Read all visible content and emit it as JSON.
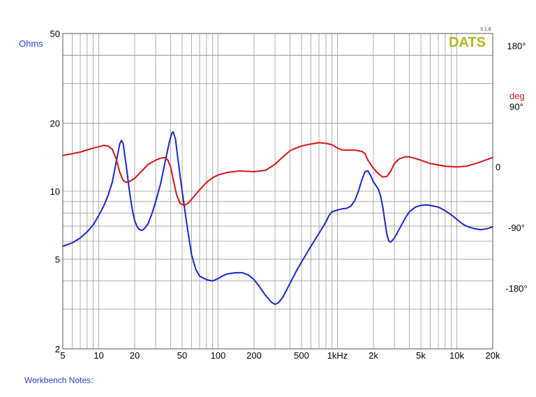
{
  "brand": {
    "name": "DATS",
    "version": "3.1.6"
  },
  "notes_label": "Workbench Notes:",
  "colors": {
    "impedance": "#1a25c8",
    "phase": "#d41414",
    "grid": "#9a9a9a",
    "frame": "#555555",
    "brand": "#b4b41e"
  },
  "chart_data": {
    "type": "line",
    "title": "",
    "xscale": "log",
    "yscale": "log",
    "grid": true,
    "xlim": [
      5,
      20000
    ],
    "ylim": [
      2,
      50
    ],
    "y2lim": [
      -270,
      198
    ],
    "left_unit": "Ohms",
    "right_unit": "deg",
    "x_ticks": [
      {
        "value": 5,
        "label": "5"
      },
      {
        "value": 10,
        "label": "10"
      },
      {
        "value": 20,
        "label": "20"
      },
      {
        "value": 50,
        "label": "50"
      },
      {
        "value": 100,
        "label": "100"
      },
      {
        "value": 200,
        "label": "200"
      },
      {
        "value": 500,
        "label": "500"
      },
      {
        "value": 1000,
        "label": "1kHz"
      },
      {
        "value": 2000,
        "label": "2k"
      },
      {
        "value": 5000,
        "label": "5k"
      },
      {
        "value": 10000,
        "label": "10k"
      },
      {
        "value": 20000,
        "label": "20k"
      }
    ],
    "y_ticks": [
      {
        "value": 50,
        "label": "50"
      },
      {
        "value": 20,
        "label": "20"
      },
      {
        "value": 10,
        "label": "10"
      },
      {
        "value": 5,
        "label": "5"
      },
      {
        "value": 2,
        "label": "2"
      }
    ],
    "y2_ticks": [
      {
        "value": 180,
        "label": "180°"
      },
      {
        "value": 90,
        "label": "90°"
      },
      {
        "value": 0,
        "label": "0"
      },
      {
        "value": -90,
        "label": "-90°"
      },
      {
        "value": -180,
        "label": "-180°"
      }
    ],
    "series": [
      {
        "key": "impedance",
        "axis": "left",
        "points": [
          [
            5,
            5.7
          ],
          [
            6,
            5.9
          ],
          [
            7,
            6.2
          ],
          [
            8,
            6.6
          ],
          [
            9,
            7.1
          ],
          [
            10,
            7.8
          ],
          [
            11,
            8.6
          ],
          [
            12,
            9.6
          ],
          [
            13,
            11.0
          ],
          [
            14,
            13.5
          ],
          [
            15,
            16.2
          ],
          [
            15.5,
            16.8
          ],
          [
            16,
            16.3
          ],
          [
            17,
            13.0
          ],
          [
            18,
            10.2
          ],
          [
            19,
            8.4
          ],
          [
            20,
            7.4
          ],
          [
            21,
            6.95
          ],
          [
            22,
            6.75
          ],
          [
            23,
            6.7
          ],
          [
            24,
            6.8
          ],
          [
            26,
            7.2
          ],
          [
            28,
            8.0
          ],
          [
            30,
            9.0
          ],
          [
            33,
            10.8
          ],
          [
            36,
            13.5
          ],
          [
            39,
            16.5
          ],
          [
            41,
            18.1
          ],
          [
            42,
            18.3
          ],
          [
            44,
            17.0
          ],
          [
            46,
            14.0
          ],
          [
            50,
            10.0
          ],
          [
            55,
            7.0
          ],
          [
            60,
            5.2
          ],
          [
            65,
            4.5
          ],
          [
            70,
            4.2
          ],
          [
            80,
            4.05
          ],
          [
            90,
            4.0
          ],
          [
            100,
            4.1
          ],
          [
            110,
            4.22
          ],
          [
            120,
            4.3
          ],
          [
            140,
            4.35
          ],
          [
            160,
            4.35
          ],
          [
            180,
            4.25
          ],
          [
            200,
            4.05
          ],
          [
            220,
            3.8
          ],
          [
            250,
            3.45
          ],
          [
            280,
            3.22
          ],
          [
            300,
            3.15
          ],
          [
            320,
            3.2
          ],
          [
            350,
            3.4
          ],
          [
            400,
            3.9
          ],
          [
            450,
            4.4
          ],
          [
            500,
            4.85
          ],
          [
            600,
            5.7
          ],
          [
            700,
            6.5
          ],
          [
            800,
            7.3
          ],
          [
            850,
            7.8
          ],
          [
            900,
            8.1
          ],
          [
            1000,
            8.25
          ],
          [
            1100,
            8.35
          ],
          [
            1200,
            8.4
          ],
          [
            1300,
            8.6
          ],
          [
            1400,
            9.1
          ],
          [
            1500,
            10.0
          ],
          [
            1600,
            11.2
          ],
          [
            1700,
            12.2
          ],
          [
            1800,
            12.3
          ],
          [
            1900,
            11.7
          ],
          [
            2000,
            11.0
          ],
          [
            2100,
            10.6
          ],
          [
            2200,
            10.2
          ],
          [
            2300,
            9.5
          ],
          [
            2400,
            8.5
          ],
          [
            2500,
            7.3
          ],
          [
            2600,
            6.4
          ],
          [
            2700,
            6.0
          ],
          [
            2800,
            5.95
          ],
          [
            3000,
            6.2
          ],
          [
            3300,
            6.8
          ],
          [
            3700,
            7.6
          ],
          [
            4000,
            8.1
          ],
          [
            4500,
            8.5
          ],
          [
            5000,
            8.65
          ],
          [
            5500,
            8.7
          ],
          [
            6000,
            8.65
          ],
          [
            7000,
            8.5
          ],
          [
            8000,
            8.2
          ],
          [
            9000,
            7.85
          ],
          [
            10000,
            7.5
          ],
          [
            11000,
            7.2
          ],
          [
            12000,
            7.0
          ],
          [
            14000,
            6.82
          ],
          [
            16000,
            6.75
          ],
          [
            18000,
            6.82
          ],
          [
            20000,
            6.95
          ]
        ]
      },
      {
        "key": "phase",
        "axis": "right",
        "points": [
          [
            5,
            17
          ],
          [
            7,
            22
          ],
          [
            9,
            28
          ],
          [
            10,
            30
          ],
          [
            11,
            32
          ],
          [
            12,
            31
          ],
          [
            13,
            26
          ],
          [
            14,
            12
          ],
          [
            15,
            -8
          ],
          [
            16,
            -20
          ],
          [
            17,
            -23
          ],
          [
            18,
            -22
          ],
          [
            20,
            -17
          ],
          [
            23,
            -6
          ],
          [
            26,
            4
          ],
          [
            30,
            10
          ],
          [
            33,
            13
          ],
          [
            36,
            14
          ],
          [
            38,
            10
          ],
          [
            40,
            0
          ],
          [
            42,
            -18
          ],
          [
            45,
            -42
          ],
          [
            48,
            -54
          ],
          [
            52,
            -57
          ],
          [
            56,
            -54
          ],
          [
            60,
            -48
          ],
          [
            70,
            -34
          ],
          [
            80,
            -23
          ],
          [
            90,
            -16
          ],
          [
            100,
            -12
          ],
          [
            120,
            -8
          ],
          [
            150,
            -6
          ],
          [
            200,
            -7
          ],
          [
            250,
            -5
          ],
          [
            300,
            4
          ],
          [
            350,
            15
          ],
          [
            400,
            24
          ],
          [
            450,
            28
          ],
          [
            500,
            31
          ],
          [
            600,
            34
          ],
          [
            700,
            36
          ],
          [
            800,
            35
          ],
          [
            900,
            33
          ],
          [
            1000,
            28
          ],
          [
            1100,
            25
          ],
          [
            1200,
            25
          ],
          [
            1400,
            25
          ],
          [
            1600,
            23
          ],
          [
            1700,
            20
          ],
          [
            1800,
            10
          ],
          [
            2000,
            -2
          ],
          [
            2200,
            -10
          ],
          [
            2400,
            -15
          ],
          [
            2600,
            -14
          ],
          [
            2800,
            -6
          ],
          [
            3000,
            5
          ],
          [
            3300,
            12
          ],
          [
            3700,
            15
          ],
          [
            4000,
            15
          ],
          [
            5000,
            10
          ],
          [
            6000,
            5
          ],
          [
            8000,
            1
          ],
          [
            10000,
            0
          ],
          [
            12000,
            1
          ],
          [
            15000,
            6
          ],
          [
            18000,
            11
          ],
          [
            20000,
            14
          ]
        ]
      }
    ]
  }
}
